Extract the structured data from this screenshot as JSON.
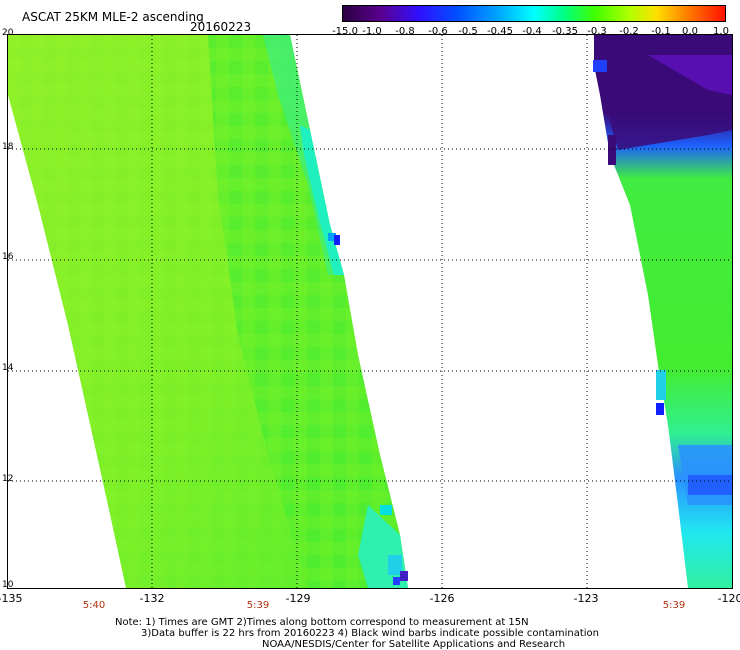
{
  "header": {
    "title": "ASCAT 25KM MLE-2 ascending",
    "date": "20160223"
  },
  "colorbar": {
    "labels": [
      "-15.0",
      "-1.0",
      "-0.8",
      "-0.6",
      "-0.5",
      "-0.45",
      "-0.4",
      "-0.35",
      "-0.3",
      "-0.2",
      "-0.1",
      "0.0",
      "1.0"
    ],
    "colors": [
      "#3a0050",
      "#6a00a8",
      "#4020ff",
      "#0050ff",
      "#00a0ff",
      "#00e0ff",
      "#00ffc0",
      "#00ff60",
      "#40ff00",
      "#a0ff00",
      "#ffe000",
      "#ff8000",
      "#ff2000"
    ]
  },
  "map": {
    "lat_labels": [
      "20",
      "18",
      "16",
      "14",
      "12",
      "10"
    ],
    "lon_labels": [
      "-135",
      "-132",
      "-129",
      "-126",
      "-123",
      "-120"
    ],
    "time_labels": [
      "5:40",
      "5:39",
      "5:39"
    ],
    "colors": {
      "swath_main": "#8cf028",
      "swath_green": "#4cf028",
      "swath_cyan": "#20f0c0",
      "swath_blue": "#2070ff",
      "swath_purple": "#3a0a78"
    }
  },
  "notes": {
    "line1": "Note: 1) Times are GMT 2)Times along bottom correspond to measurement at 15N",
    "line2": "3)Data buffer is 22 hrs from 20160223 4) Black wind barbs indicate possible contamination",
    "line3": "NOAA/NESDIS/Center for Satellite Applications and Research"
  }
}
